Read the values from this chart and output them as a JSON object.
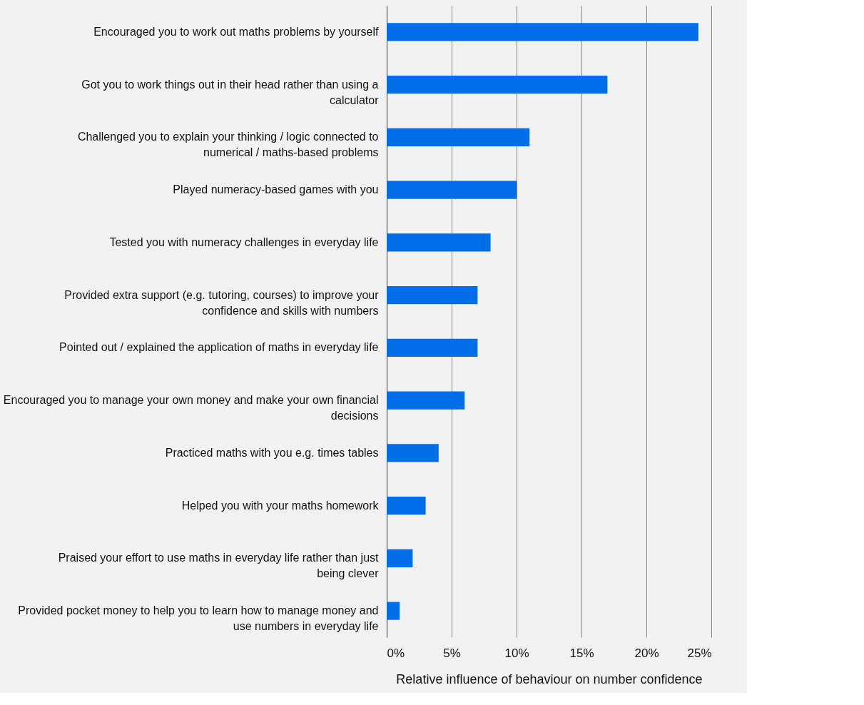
{
  "chart_data": {
    "type": "bar",
    "orientation": "horizontal",
    "xlabel": "Relative influence of behaviour on number confidence",
    "categories": [
      "Encouraged you to work out maths problems by yourself",
      "Got you to work things out in their head rather than using a calculator",
      "Challenged you to explain your thinking / logic connected to numerical / maths-based problems",
      "Played numeracy-based games with you",
      "Tested you with numeracy challenges in everyday life",
      "Provided extra support (e.g. tutoring, courses) to improve your confidence and skills with numbers",
      "Pointed out / explained the application of maths in everyday life",
      "Encouraged you to manage your own money and make your own financial decisions",
      "Practiced maths with you e.g. times tables",
      "Helped you with your maths homework",
      "Praised your effort to use maths in everyday life rather than just being clever",
      "Provided pocket money to help you to learn how to manage money and use numbers in everyday life"
    ],
    "values": [
      24,
      17,
      11,
      10,
      8,
      7,
      7,
      6,
      4,
      3,
      2,
      1
    ],
    "color": "#006ee6",
    "xlim": [
      0,
      25
    ],
    "xticks": [
      {
        "value": 0,
        "label": "0%"
      },
      {
        "value": 5,
        "label": "5%"
      },
      {
        "value": 10,
        "label": "10%"
      },
      {
        "value": 15,
        "label": "15%"
      },
      {
        "value": 20,
        "label": "20%"
      },
      {
        "value": 25,
        "label": "25%"
      }
    ],
    "grid": "x"
  }
}
